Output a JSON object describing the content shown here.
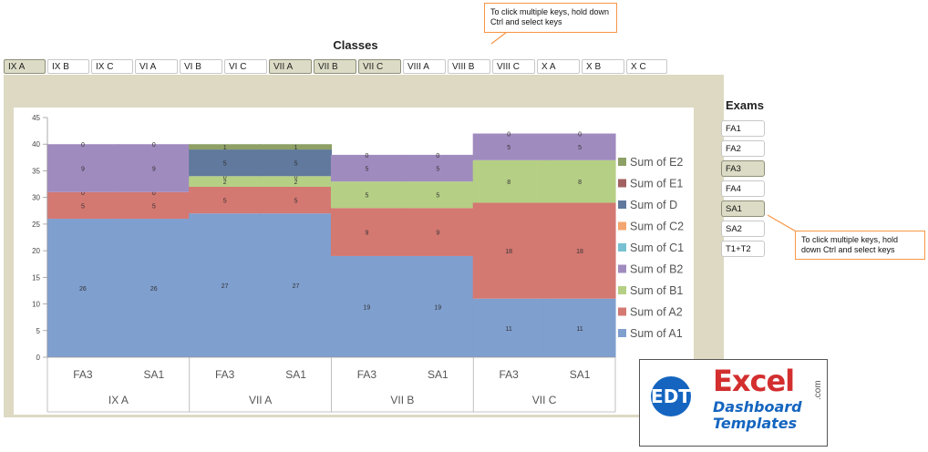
{
  "classes_slicer": {
    "title": "Classes",
    "items": [
      {
        "label": "IX A",
        "selected": true
      },
      {
        "label": "IX B",
        "selected": false
      },
      {
        "label": "IX C",
        "selected": false
      },
      {
        "label": "VI A",
        "selected": false
      },
      {
        "label": "VI B",
        "selected": false
      },
      {
        "label": "VI C",
        "selected": false
      },
      {
        "label": "VII A",
        "selected": true
      },
      {
        "label": "VII B",
        "selected": true
      },
      {
        "label": "VII C",
        "selected": true
      },
      {
        "label": "VIII A",
        "selected": false
      },
      {
        "label": "VIII B",
        "selected": false
      },
      {
        "label": "VIII C",
        "selected": false
      },
      {
        "label": "X A",
        "selected": false
      },
      {
        "label": "X B",
        "selected": false
      },
      {
        "label": "X C",
        "selected": false
      }
    ]
  },
  "exams_slicer": {
    "title": "Exams",
    "items": [
      {
        "label": "FA1",
        "selected": false
      },
      {
        "label": "FA2",
        "selected": false
      },
      {
        "label": "FA3",
        "selected": true
      },
      {
        "label": "FA4",
        "selected": false
      },
      {
        "label": "SA1",
        "selected": true
      },
      {
        "label": "SA2",
        "selected": false
      },
      {
        "label": "T1+T2",
        "selected": false
      }
    ]
  },
  "callouts": {
    "top": "To click multiple keys, hold down Ctrl and select keys",
    "right": "To click multiple keys, hold down Ctrl and select keys"
  },
  "logo": {
    "mark": "EDT",
    "line1": "Excel",
    "line2": "Dashboard",
    "line3": "Templates",
    "suffix": ".com"
  },
  "colors": {
    "A1": "#7f9fcf",
    "A2": "#d47872",
    "B1": "#b5cf85",
    "B2": "#a08bbf",
    "C1": "#78c1d3",
    "C2": "#f3a66f",
    "D": "#60799d",
    "E1": "#a36060",
    "E2": "#8ea066",
    "selected_button": "#dcdcc6",
    "panel": "#ddd9c3",
    "callout_border": "#f79646"
  },
  "chart_data": {
    "type": "bar",
    "stacked": true,
    "ylim": [
      0,
      45
    ],
    "yticks": [
      0,
      5,
      10,
      15,
      20,
      25,
      30,
      35,
      40,
      45
    ],
    "categories": [
      "FA3",
      "SA1",
      "FA3",
      "SA1",
      "FA3",
      "SA1",
      "FA3",
      "SA1"
    ],
    "groups": [
      "IX A",
      "VII A",
      "VII B",
      "VII C"
    ],
    "series": [
      {
        "name": "Sum of A1",
        "key": "A1",
        "values": [
          26,
          26,
          27,
          27,
          19,
          19,
          11,
          11
        ]
      },
      {
        "name": "Sum of A2",
        "key": "A2",
        "values": [
          5,
          5,
          5,
          5,
          9,
          9,
          18,
          18
        ]
      },
      {
        "name": "Sum of B1",
        "key": "B1",
        "values": [
          0,
          0,
          2,
          2,
          5,
          5,
          8,
          8
        ]
      },
      {
        "name": "Sum of B2",
        "key": "B2",
        "values": [
          9,
          9,
          0,
          0,
          5,
          5,
          5,
          5
        ]
      },
      {
        "name": "Sum of C1",
        "key": "C1",
        "values": [
          0,
          0,
          0,
          0,
          0,
          0,
          0,
          0
        ]
      },
      {
        "name": "Sum of C2",
        "key": "C2",
        "values": [
          0,
          0,
          0,
          0,
          0,
          0,
          0,
          0
        ]
      },
      {
        "name": "Sum of D",
        "key": "D",
        "values": [
          0,
          0,
          5,
          5,
          0,
          0,
          0,
          0
        ]
      },
      {
        "name": "Sum of E1",
        "key": "E1",
        "values": [
          0,
          0,
          0,
          0,
          0,
          0,
          0,
          0
        ]
      },
      {
        "name": "Sum of E2",
        "key": "E2",
        "values": [
          0,
          0,
          1,
          1,
          0,
          0,
          0,
          0
        ]
      }
    ],
    "legend_position": "right"
  }
}
